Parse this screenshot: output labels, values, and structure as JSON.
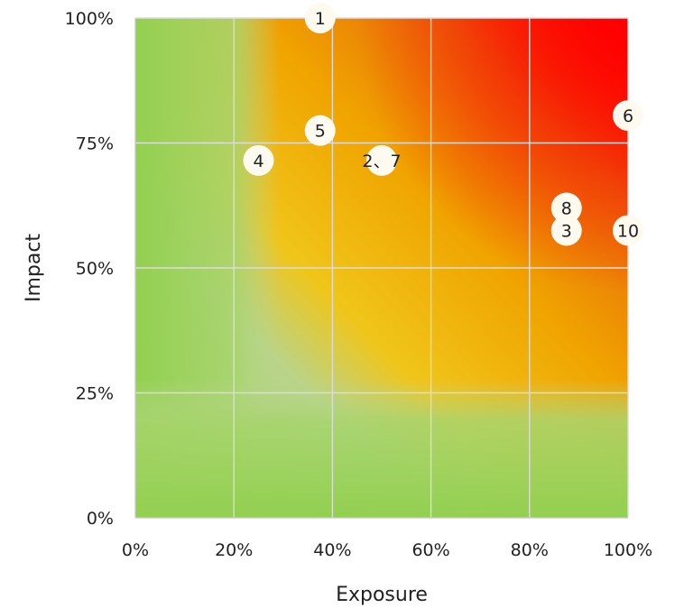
{
  "chart_data": {
    "type": "scatter",
    "title": "",
    "xlabel": "Exposure",
    "ylabel": "Impact",
    "xlim": [
      0,
      100
    ],
    "ylim": [
      0,
      100
    ],
    "x_ticks": [
      "0%",
      "20%",
      "40%",
      "60%",
      "80%",
      "100%"
    ],
    "y_ticks": [
      "0%",
      "25%",
      "50%",
      "75%",
      "100%"
    ],
    "grid": true,
    "background": "risk heatmap gradient: green (low) to yellow/orange to red (high exposure, high impact)",
    "points": [
      {
        "label": "1",
        "x": 37.5,
        "y": 100
      },
      {
        "label": "5",
        "x": 37.5,
        "y": 77.5
      },
      {
        "label": "4",
        "x": 25,
        "y": 71.5
      },
      {
        "label": "2、7",
        "x": 50,
        "y": 71.5
      },
      {
        "label": "6",
        "x": 100,
        "y": 80.5
      },
      {
        "label": "8",
        "x": 87.5,
        "y": 62
      },
      {
        "label": "3",
        "x": 87.5,
        "y": 57.5
      },
      {
        "label": "10",
        "x": 100,
        "y": 57.5
      }
    ]
  },
  "colors": {
    "low": "#92d050",
    "medium": "#ffc000",
    "high": "#ff0000",
    "point_fill": "#fffaf0",
    "grid": "#dcdcdc"
  }
}
